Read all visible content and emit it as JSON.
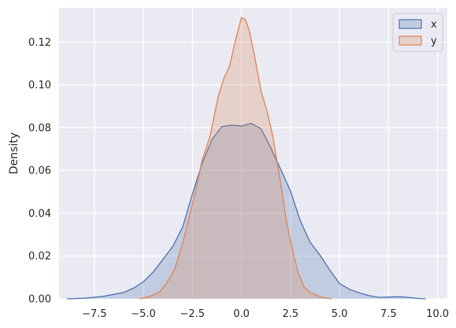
{
  "chart_data": {
    "type": "area",
    "subtype": "kde",
    "title": "",
    "xlabel": "",
    "ylabel": "Density",
    "xlim": [
      -9.3,
      10.5
    ],
    "ylim": [
      0,
      0.136
    ],
    "xticks": [
      -7.5,
      -5.0,
      -2.5,
      0.0,
      2.5,
      5.0,
      7.5,
      10.0
    ],
    "xtick_labels": [
      "−7.5",
      "−5.0",
      "−2.5",
      "0.0",
      "2.5",
      "5.0",
      "7.5",
      "10.0"
    ],
    "yticks": [
      0.0,
      0.02,
      0.04,
      0.06,
      0.08,
      0.1,
      0.12
    ],
    "ytick_labels": [
      "0.00",
      "0.02",
      "0.04",
      "0.06",
      "0.08",
      "0.10",
      "0.12"
    ],
    "grid": true,
    "legend_position": "top-right",
    "background": "#eaeaf2",
    "series": [
      {
        "name": "x",
        "line_color": "#4c72b0",
        "fill_color": "#4c72b0",
        "fill_opacity": 0.25,
        "x": [
          -8.9,
          -8.0,
          -7.0,
          -6.0,
          -5.5,
          -5.0,
          -4.5,
          -4.0,
          -3.5,
          -3.0,
          -2.5,
          -2.0,
          -1.5,
          -1.0,
          -0.5,
          0.0,
          0.5,
          1.0,
          1.5,
          2.0,
          2.5,
          3.0,
          3.5,
          4.0,
          4.5,
          5.0,
          5.5,
          6.0,
          6.5,
          7.0,
          7.5,
          8.0,
          8.5,
          9.0,
          9.4
        ],
        "y": [
          0.0,
          0.0003,
          0.0012,
          0.003,
          0.005,
          0.008,
          0.0125,
          0.0185,
          0.0245,
          0.0335,
          0.049,
          0.0635,
          0.0745,
          0.0805,
          0.0812,
          0.0808,
          0.082,
          0.0795,
          0.0705,
          0.0605,
          0.0505,
          0.0365,
          0.0265,
          0.0205,
          0.0135,
          0.0072,
          0.0045,
          0.0028,
          0.0015,
          0.0007,
          0.0008,
          0.001,
          0.0007,
          0.0002,
          0.0
        ]
      },
      {
        "name": "y",
        "line_color": "#dd8452",
        "fill_color": "#dd8452",
        "fill_opacity": 0.25,
        "x": [
          -5.2,
          -4.8,
          -4.5,
          -4.2,
          -4.0,
          -3.7,
          -3.4,
          -3.0,
          -2.7,
          -2.4,
          -2.0,
          -1.6,
          -1.2,
          -0.9,
          -0.6,
          -0.3,
          0.0,
          0.2,
          0.4,
          0.7,
          1.0,
          1.3,
          1.6,
          2.0,
          2.3,
          2.6,
          2.9,
          3.2,
          3.5,
          3.9,
          4.2,
          4.6
        ],
        "y": [
          0.0,
          0.0008,
          0.0018,
          0.003,
          0.0052,
          0.009,
          0.014,
          0.026,
          0.037,
          0.048,
          0.065,
          0.076,
          0.094,
          0.103,
          0.109,
          0.121,
          0.1315,
          0.1305,
          0.1255,
          0.112,
          0.097,
          0.088,
          0.076,
          0.054,
          0.036,
          0.023,
          0.012,
          0.0055,
          0.003,
          0.0014,
          0.0006,
          0.0
        ]
      }
    ]
  }
}
